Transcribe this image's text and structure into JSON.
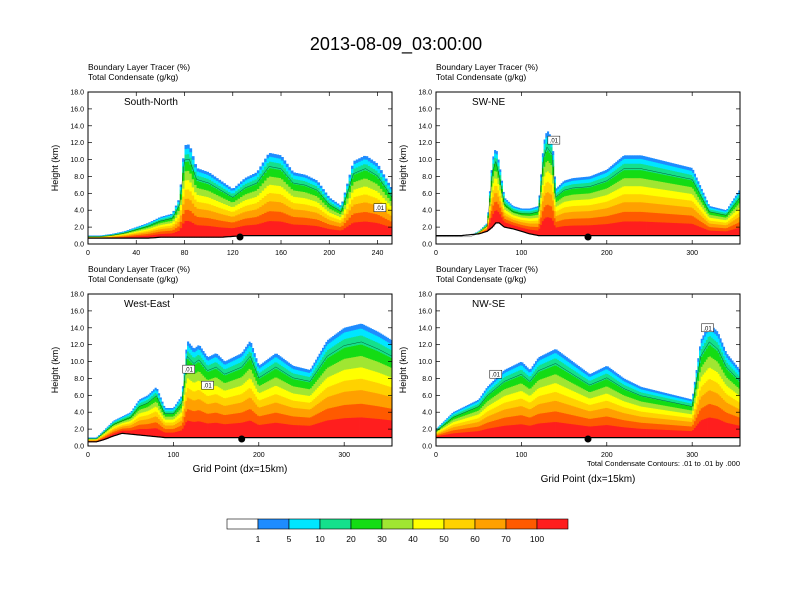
{
  "title": "2013-08-09_03:00:00",
  "colors": [
    "#ffffff",
    "#1e8cff",
    "#00e6ff",
    "#14e08c",
    "#14dc14",
    "#a0e632",
    "#ffff00",
    "#ffd200",
    "#ffa000",
    "#ff5a00",
    "#ff1e1e"
  ],
  "colorbar": {
    "labels": [
      "1",
      "5",
      "10",
      "20",
      "30",
      "40",
      "50",
      "60",
      "70",
      "100"
    ]
  },
  "contour_note": "Total Condensate Contours: .01 to .01 by .000",
  "chart_data": [
    {
      "type": "heatmap",
      "label_line1": "Boundary Layer Tracer    (%)",
      "label_line2": "Total Condensate    (g/kg)",
      "inset": "South-North",
      "ylabel": "Height (km)",
      "xlabel": "",
      "xlim": [
        0,
        252
      ],
      "ylim": [
        0,
        18
      ],
      "xticks": [
        0,
        40,
        80,
        120,
        160,
        200,
        240
      ],
      "yticks": [
        "0.0",
        "2.0",
        "4.0",
        "6.0",
        "8.0",
        "10.0",
        "12.0",
        "14.0",
        "16.0",
        "18.0"
      ],
      "contour_labels": [
        {
          "text": ".01",
          "x": 242,
          "y": 4.3
        }
      ],
      "marker_x": 126,
      "cloud_x": [
        0,
        10,
        20,
        30,
        40,
        50,
        60,
        70,
        76,
        80,
        84,
        90,
        100,
        110,
        120,
        130,
        140,
        150,
        160,
        170,
        180,
        190,
        200,
        210,
        220,
        230,
        240,
        252
      ],
      "cloud_top_km": [
        1.0,
        1.0,
        1.2,
        1.5,
        2.0,
        2.5,
        3.2,
        3.6,
        5.5,
        11.7,
        11.8,
        9.0,
        8.5,
        7.5,
        6.5,
        7.8,
        8.5,
        10.8,
        10.5,
        8.5,
        8.2,
        7.5,
        5.5,
        4.5,
        9.8,
        10.5,
        9.5,
        6.5
      ],
      "terrain_km": [
        0.7,
        0.7,
        0.7,
        0.7,
        0.7,
        0.7,
        0.8,
        0.8,
        0.8,
        0.8,
        0.8,
        0.8,
        0.8,
        0.8,
        0.9,
        1.0,
        1.0,
        1.0,
        1.0,
        1.0,
        1.0,
        1.0,
        1.0,
        1.0,
        1.0,
        1.0,
        1.0,
        1.0
      ]
    },
    {
      "type": "heatmap",
      "label_line1": "Boundary Layer Tracer    (%)",
      "label_line2": "Total Condensate    (g/kg)",
      "inset": "SW-NE",
      "ylabel": "Height (km)",
      "xlabel": "",
      "xlim": [
        0,
        356
      ],
      "ylim": [
        0,
        18
      ],
      "xticks": [
        0,
        100,
        200,
        300
      ],
      "yticks": [
        "0.0",
        "2.0",
        "4.0",
        "6.0",
        "8.0",
        "10.0",
        "12.0",
        "14.0",
        "16.0",
        "18.0"
      ],
      "contour_labels": [
        {
          "text": ".01",
          "x": 138,
          "y": 12.3
        }
      ],
      "marker_x": 178,
      "cloud_x": [
        0,
        10,
        20,
        30,
        40,
        50,
        60,
        66,
        70,
        74,
        80,
        90,
        100,
        110,
        120,
        126,
        130,
        136,
        140,
        150,
        160,
        180,
        200,
        220,
        240,
        260,
        280,
        300,
        320,
        340,
        356
      ],
      "cloud_top_km": [
        1.0,
        1.0,
        1.0,
        1.0,
        1.0,
        1.5,
        2.5,
        10.0,
        11.5,
        9.5,
        5.5,
        4.5,
        4.2,
        4.2,
        4.5,
        12.0,
        13.5,
        12.5,
        6.5,
        7.5,
        7.8,
        8.0,
        8.8,
        10.5,
        10.5,
        10.0,
        9.5,
        9.0,
        4.5,
        4.0,
        6.5
      ],
      "terrain_km": [
        1.0,
        1.0,
        1.0,
        1.0,
        1.1,
        1.2,
        1.5,
        2.0,
        2.5,
        2.5,
        2.0,
        1.8,
        1.5,
        1.2,
        1.0,
        1.0,
        1.0,
        1.0,
        1.0,
        1.0,
        1.0,
        1.0,
        1.0,
        1.0,
        1.0,
        1.0,
        1.0,
        1.0,
        1.0,
        1.0,
        1.0
      ]
    },
    {
      "type": "heatmap",
      "label_line1": "Boundary Layer Tracer    (%)",
      "label_line2": "Total Condensate    (g/kg)",
      "inset": "West-East",
      "ylabel": "Height (km)",
      "xlabel": "Grid Point (dx=15km)",
      "xlim": [
        0,
        356
      ],
      "ylim": [
        0,
        18
      ],
      "xticks": [
        0,
        100,
        200,
        300
      ],
      "yticks": [
        "0.0",
        "2.0",
        "4.0",
        "6.0",
        "8.0",
        "10.0",
        "12.0",
        "14.0",
        "16.0",
        "18.0"
      ],
      "contour_labels": [
        {
          "text": ".01",
          "x": 118,
          "y": 9.1
        },
        {
          "text": ".01",
          "x": 140,
          "y": 7.2
        }
      ],
      "marker_x": 180,
      "cloud_x": [
        0,
        10,
        20,
        30,
        40,
        50,
        60,
        70,
        80,
        90,
        100,
        110,
        116,
        124,
        130,
        140,
        150,
        160,
        170,
        180,
        190,
        200,
        220,
        240,
        260,
        280,
        300,
        320,
        340,
        356
      ],
      "cloud_top_km": [
        1.0,
        1.0,
        2.0,
        3.0,
        3.5,
        4.0,
        5.5,
        6.0,
        7.0,
        4.5,
        4.5,
        6.0,
        12.5,
        11.5,
        12.0,
        10.5,
        11.0,
        10.0,
        10.5,
        11.0,
        12.5,
        9.5,
        11.0,
        9.5,
        9.0,
        12.5,
        14.0,
        14.5,
        13.5,
        12.5
      ],
      "terrain_km": [
        0.5,
        0.5,
        0.8,
        1.2,
        1.5,
        1.4,
        1.3,
        1.2,
        1.1,
        1.0,
        1.0,
        1.0,
        1.0,
        1.0,
        1.0,
        1.0,
        1.0,
        1.0,
        1.0,
        1.0,
        1.0,
        1.0,
        1.0,
        1.0,
        1.0,
        1.0,
        1.0,
        1.0,
        1.0,
        1.0
      ]
    },
    {
      "type": "heatmap",
      "label_line1": "Boundary Layer Tracer    (%)",
      "label_line2": "Total Condensate    (g/kg)",
      "inset": "NW-SE",
      "ylabel": "Height (km)",
      "xlabel": "Grid Point (dx=15km)",
      "xlim": [
        0,
        356
      ],
      "ylim": [
        0,
        18
      ],
      "xticks": [
        0,
        100,
        200,
        300
      ],
      "yticks": [
        "0.0",
        "2.0",
        "4.0",
        "6.0",
        "8.0",
        "10.0",
        "12.0",
        "14.0",
        "16.0",
        "18.0"
      ],
      "contour_labels": [
        {
          "text": ".01",
          "x": 70,
          "y": 8.5
        },
        {
          "text": ".01",
          "x": 318,
          "y": 14.0
        }
      ],
      "marker_x": 178,
      "cloud_x": [
        0,
        10,
        20,
        30,
        40,
        50,
        60,
        70,
        80,
        90,
        100,
        110,
        120,
        130,
        140,
        160,
        180,
        200,
        220,
        240,
        260,
        280,
        300,
        310,
        320,
        330,
        340,
        356
      ],
      "cloud_top_km": [
        2.0,
        3.0,
        4.0,
        4.5,
        5.0,
        5.5,
        7.0,
        8.0,
        9.0,
        9.5,
        10.0,
        9.0,
        10.5,
        11.0,
        11.5,
        10.0,
        8.5,
        9.5,
        8.0,
        7.0,
        6.5,
        6.0,
        5.5,
        12.5,
        14.5,
        13.5,
        11.0,
        9.0
      ],
      "terrain_km": [
        1.0,
        1.0,
        1.0,
        1.0,
        1.0,
        1.0,
        1.0,
        1.0,
        1.0,
        1.0,
        1.0,
        1.0,
        1.0,
        1.0,
        1.0,
        1.0,
        1.0,
        1.0,
        1.0,
        1.0,
        1.0,
        1.0,
        1.0,
        1.0,
        1.0,
        1.0,
        1.0,
        1.0
      ]
    }
  ]
}
